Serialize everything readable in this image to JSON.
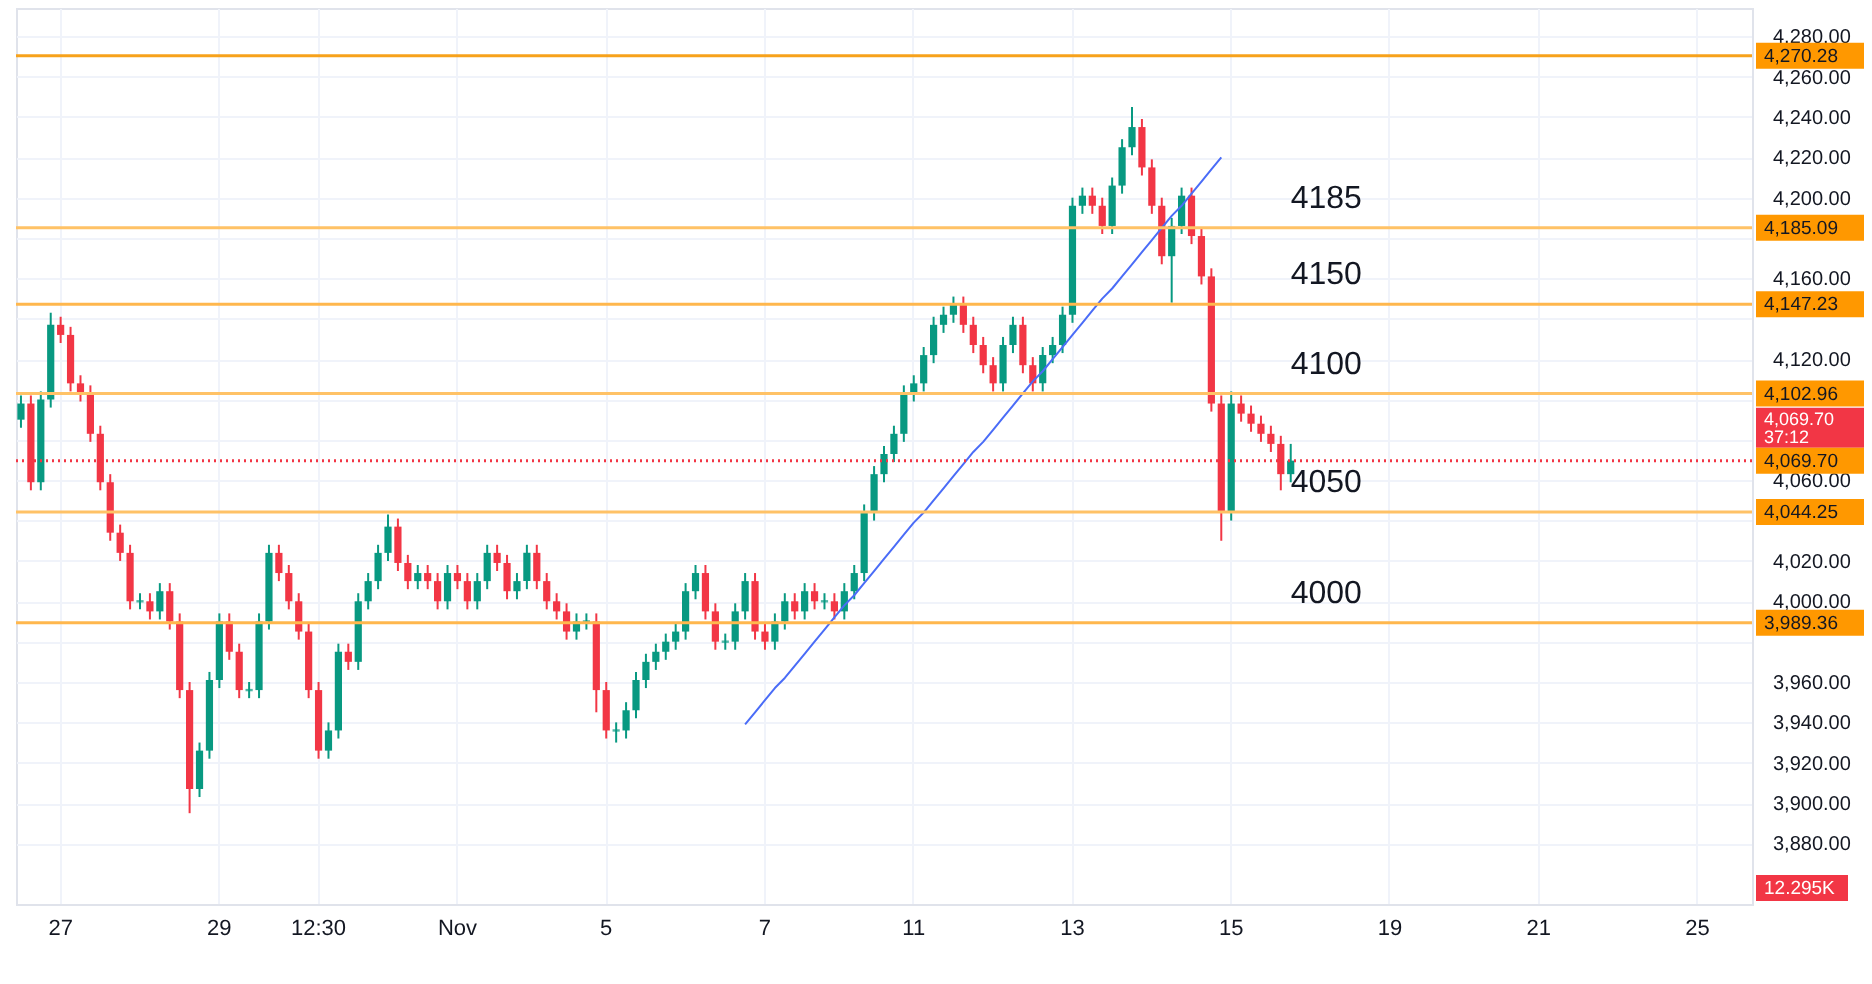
{
  "chart_data": {
    "type": "candlestick",
    "categories": [
      null,
      null,
      null,
      null,
      "27",
      null,
      null,
      null,
      null,
      null,
      null,
      null,
      null,
      null,
      null,
      null,
      null,
      null,
      null,
      null,
      "29",
      null,
      null,
      null,
      null,
      null,
      null,
      null,
      null,
      null,
      "12:30",
      null,
      null,
      null,
      null,
      null,
      null,
      null,
      null,
      null,
      null,
      null,
      null,
      null,
      "Nov",
      null,
      null,
      null,
      null,
      null,
      null,
      null,
      null,
      null,
      null,
      null,
      null,
      null,
      null,
      "5",
      null,
      null,
      null,
      null,
      null,
      null,
      null,
      null,
      null,
      null,
      null,
      null,
      null,
      null,
      null,
      "7",
      null,
      null,
      null,
      null,
      null,
      null,
      null,
      null,
      null,
      null,
      null,
      null,
      null,
      null,
      "11",
      null,
      null,
      null,
      null,
      null,
      null,
      null,
      null,
      null,
      null,
      null,
      null,
      null,
      null,
      null,
      "13",
      null,
      null,
      null,
      null,
      null,
      null,
      null,
      null,
      null,
      null,
      null,
      null,
      null,
      null,
      null,
      "15",
      null,
      null,
      null,
      null,
      null,
      null,
      null,
      null,
      null,
      null,
      null,
      null,
      null,
      null,
      null,
      "19",
      null,
      null,
      null,
      null,
      null,
      null,
      null,
      null,
      null,
      null,
      null,
      null,
      null,
      null,
      "21",
      null,
      null,
      null,
      null,
      null,
      null,
      null,
      null,
      null,
      null,
      null,
      null,
      null,
      null,
      null,
      "25",
      null,
      null,
      null,
      null,
      null
    ],
    "ohlc": [
      [
        4090,
        4102,
        4086,
        4098
      ],
      [
        4098,
        4102,
        4055,
        4059
      ],
      [
        4059,
        4104,
        4055,
        4100
      ],
      [
        4100,
        4143,
        4096,
        4137
      ],
      [
        4137,
        4141,
        4128,
        4132
      ],
      [
        4132,
        4136,
        4104,
        4108
      ],
      [
        4108,
        4112,
        4099,
        4103
      ],
      [
        4103,
        4107,
        4079,
        4083
      ],
      [
        4083,
        4087,
        4055,
        4059
      ],
      [
        4059,
        4063,
        4030,
        4034
      ],
      [
        4034,
        4038,
        4020,
        4024
      ],
      [
        4024,
        4028,
        3996,
        4000
      ],
      [
        4000,
        4004,
        3996,
        4000
      ],
      [
        4000,
        4004,
        3991,
        3995
      ],
      [
        3995,
        4009,
        3991,
        4005
      ],
      [
        4005,
        4009,
        3986,
        3990
      ],
      [
        3990,
        3994,
        3952,
        3956
      ],
      [
        3956,
        3960,
        3895,
        3907
      ],
      [
        3907,
        3930,
        3903,
        3926
      ],
      [
        3926,
        3965,
        3922,
        3961
      ],
      [
        3961,
        3994,
        3957,
        3990
      ],
      [
        3990,
        3994,
        3971,
        3975
      ],
      [
        3975,
        3979,
        3952,
        3956
      ],
      [
        3956,
        3960,
        3952,
        3956
      ],
      [
        3956,
        3994,
        3952,
        3990
      ],
      [
        3990,
        4028,
        3986,
        4024
      ],
      [
        4024,
        4028,
        4010,
        4014
      ],
      [
        4014,
        4018,
        3996,
        4000
      ],
      [
        4000,
        4004,
        3981,
        3985
      ],
      [
        3985,
        3989,
        3952,
        3956
      ],
      [
        3956,
        3960,
        3922,
        3926
      ],
      [
        3926,
        3940,
        3922,
        3936
      ],
      [
        3936,
        3979,
        3932,
        3975
      ],
      [
        3975,
        3979,
        3966,
        3970
      ],
      [
        3970,
        4004,
        3966,
        4000
      ],
      [
        4000,
        4014,
        3996,
        4010
      ],
      [
        4010,
        4028,
        4006,
        4024
      ],
      [
        4024,
        4043,
        4020,
        4037
      ],
      [
        4037,
        4041,
        4015,
        4019
      ],
      [
        4019,
        4023,
        4006,
        4010
      ],
      [
        4010,
        4018,
        4006,
        4014
      ],
      [
        4014,
        4018,
        4006,
        4010
      ],
      [
        4010,
        4014,
        3996,
        4000
      ],
      [
        4000,
        4018,
        3996,
        4014
      ],
      [
        4014,
        4018,
        4006,
        4010
      ],
      [
        4010,
        4014,
        3996,
        4000
      ],
      [
        4000,
        4014,
        3996,
        4010
      ],
      [
        4010,
        4028,
        4006,
        4024
      ],
      [
        4024,
        4028,
        4015,
        4019
      ],
      [
        4019,
        4023,
        4001,
        4005
      ],
      [
        4005,
        4014,
        4001,
        4010
      ],
      [
        4010,
        4028,
        4006,
        4024
      ],
      [
        4024,
        4028,
        4006,
        4010
      ],
      [
        4010,
        4014,
        3996,
        4000
      ],
      [
        4000,
        4004,
        3991,
        3995
      ],
      [
        3995,
        3999,
        3981,
        3985
      ],
      [
        3985,
        3994,
        3981,
        3990
      ],
      [
        3990,
        3994,
        3986,
        3990
      ],
      [
        3990,
        3994,
        3945,
        3956
      ],
      [
        3956,
        3960,
        3932,
        3936
      ],
      [
        3936,
        3940,
        3930,
        3936
      ],
      [
        3936,
        3950,
        3932,
        3946
      ],
      [
        3946,
        3965,
        3942,
        3961
      ],
      [
        3961,
        3974,
        3957,
        3970
      ],
      [
        3970,
        3979,
        3966,
        3975
      ],
      [
        3975,
        3984,
        3971,
        3980
      ],
      [
        3980,
        3989,
        3976,
        3985
      ],
      [
        3985,
        4009,
        3981,
        4005
      ],
      [
        4005,
        4018,
        4001,
        4014
      ],
      [
        4014,
        4018,
        3991,
        3995
      ],
      [
        3995,
        3999,
        3976,
        3980
      ],
      [
        3980,
        3984,
        3976,
        3980
      ],
      [
        3980,
        3999,
        3976,
        3995
      ],
      [
        3995,
        4014,
        3991,
        4010
      ],
      [
        4010,
        4014,
        3981,
        3985
      ],
      [
        3985,
        3989,
        3976,
        3980
      ],
      [
        3980,
        3994,
        3976,
        3990
      ],
      [
        3990,
        4004,
        3986,
        4000
      ],
      [
        4000,
        4004,
        3991,
        3995
      ],
      [
        3995,
        4009,
        3991,
        4005
      ],
      [
        4005,
        4009,
        3996,
        4000
      ],
      [
        4000,
        4004,
        3996,
        4000
      ],
      [
        4000,
        4004,
        3991,
        3995
      ],
      [
        3995,
        4009,
        3991,
        4005
      ],
      [
        4005,
        4018,
        4001,
        4014
      ],
      [
        4014,
        4048,
        4010,
        4044
      ],
      [
        4044,
        4067,
        4040,
        4063
      ],
      [
        4063,
        4077,
        4059,
        4073
      ],
      [
        4073,
        4087,
        4069,
        4083
      ],
      [
        4083,
        4107,
        4079,
        4103
      ],
      [
        4103,
        4112,
        4099,
        4108
      ],
      [
        4108,
        4126,
        4104,
        4122
      ],
      [
        4122,
        4141,
        4118,
        4137
      ],
      [
        4137,
        4146,
        4133,
        4142
      ],
      [
        4142,
        4151,
        4138,
        4147
      ],
      [
        4147,
        4151,
        4133,
        4137
      ],
      [
        4137,
        4141,
        4123,
        4127
      ],
      [
        4127,
        4131,
        4113,
        4117
      ],
      [
        4117,
        4121,
        4104,
        4108
      ],
      [
        4108,
        4131,
        4104,
        4127
      ],
      [
        4127,
        4141,
        4123,
        4137
      ],
      [
        4137,
        4141,
        4113,
        4117
      ],
      [
        4117,
        4121,
        4104,
        4108
      ],
      [
        4108,
        4126,
        4104,
        4122
      ],
      [
        4122,
        4131,
        4118,
        4127
      ],
      [
        4127,
        4146,
        4123,
        4142
      ],
      [
        4142,
        4200,
        4138,
        4196
      ],
      [
        4196,
        4205,
        4192,
        4201
      ],
      [
        4201,
        4205,
        4192,
        4196
      ],
      [
        4196,
        4200,
        4182,
        4186
      ],
      [
        4186,
        4210,
        4182,
        4206
      ],
      [
        4206,
        4229,
        4202,
        4225
      ],
      [
        4225,
        4245,
        4221,
        4235
      ],
      [
        4235,
        4239,
        4211,
        4215
      ],
      [
        4215,
        4219,
        4192,
        4196
      ],
      [
        4196,
        4200,
        4167,
        4171
      ],
      [
        4171,
        4190,
        4148,
        4186
      ],
      [
        4186,
        4205,
        4182,
        4201
      ],
      [
        4201,
        4205,
        4177,
        4181
      ],
      [
        4181,
        4185,
        4157,
        4161
      ],
      [
        4161,
        4165,
        4094,
        4098
      ],
      [
        4098,
        4102,
        4030,
        4044
      ],
      [
        4044,
        4104,
        4040,
        4098
      ],
      [
        4098,
        4102,
        4089,
        4093
      ],
      [
        4093,
        4097,
        4084,
        4088
      ],
      [
        4088,
        4092,
        4079,
        4083
      ],
      [
        4083,
        4087,
        4074,
        4078
      ],
      [
        4078,
        4082,
        4055,
        4063
      ],
      [
        4063,
        4078,
        4059,
        4069.7
      ],
      null,
      null,
      null,
      null,
      null,
      null,
      null,
      null,
      null,
      null,
      null,
      null,
      null,
      null,
      null,
      null,
      null,
      null,
      null,
      null,
      null,
      null,
      null,
      null,
      null,
      null,
      null,
      null,
      null,
      null,
      null,
      null,
      null,
      null,
      null,
      null,
      null,
      null,
      null,
      null,
      null,
      null,
      null,
      null,
      null,
      null
    ],
    "series": [
      {
        "type": "line",
        "color": "#4a6cf7",
        "values": [
          null,
          null,
          null,
          null,
          null,
          null,
          null,
          null,
          null,
          null,
          null,
          null,
          null,
          null,
          null,
          null,
          null,
          null,
          null,
          null,
          null,
          null,
          null,
          null,
          null,
          null,
          null,
          null,
          null,
          null,
          null,
          null,
          null,
          null,
          null,
          null,
          null,
          null,
          null,
          null,
          null,
          null,
          null,
          null,
          null,
          null,
          null,
          null,
          null,
          null,
          null,
          null,
          null,
          null,
          null,
          null,
          null,
          null,
          null,
          null,
          null,
          null,
          null,
          null,
          null,
          null,
          null,
          null,
          null,
          null,
          null,
          null,
          null,
          3939,
          3945,
          3951,
          3957,
          3962,
          3968,
          3974,
          3980,
          3986,
          3992,
          3998,
          4003,
          4009,
          4015,
          4021,
          4027,
          4033,
          4039,
          4044,
          4050,
          4056,
          4062,
          4068,
          4074,
          4079,
          4085,
          4091,
          4097,
          4103,
          4109,
          4114,
          4120,
          4126,
          4132,
          4138,
          4144,
          4150,
          4155,
          4161,
          4167,
          4173,
          4179,
          4185,
          4191,
          4196,
          4202,
          4208,
          4214,
          4220,
          null,
          null,
          null,
          null,
          null,
          null,
          null,
          null,
          null,
          null,
          null,
          null,
          null,
          null,
          null,
          null,
          null,
          null,
          null,
          null,
          null,
          null,
          null,
          null,
          null,
          null,
          null,
          null,
          null,
          null,
          null,
          null,
          null,
          null,
          null,
          null,
          null,
          null,
          null,
          null,
          null,
          null,
          null,
          null,
          null,
          null,
          null,
          null,
          null,
          null,
          null,
          null,
          null
        ]
      }
    ],
    "ylim": [
      3850,
      4294
    ],
    "yticks": [
      {
        "value": 3880,
        "label": "3,880.00"
      },
      {
        "value": 3900,
        "label": "3,900.00"
      },
      {
        "value": 3920,
        "label": "3,920.00"
      },
      {
        "value": 3940,
        "label": "3,940.00"
      },
      {
        "value": 3960,
        "label": "3,960.00"
      },
      {
        "value": 3980,
        "label": null
      },
      {
        "value": 4000,
        "label": "4,000.00"
      },
      {
        "value": 4020,
        "label": "4,020.00"
      },
      {
        "value": 4040,
        "label": null
      },
      {
        "value": 4060,
        "label": "4,060.00"
      },
      {
        "value": 4080,
        "label": null
      },
      {
        "value": 4100,
        "label": null
      },
      {
        "value": 4120,
        "label": "4,120.00"
      },
      {
        "value": 4140,
        "label": null
      },
      {
        "value": 4160,
        "label": "4,160.00"
      },
      {
        "value": 4180,
        "label": null
      },
      {
        "value": 4200,
        "label": "4,200.00"
      },
      {
        "value": 4220,
        "label": "4,220.00"
      },
      {
        "value": 4240,
        "label": "4,240.00"
      },
      {
        "value": 4260,
        "label": "4,260.00"
      },
      {
        "value": 4280,
        "label": "4,280.00"
      }
    ],
    "grid": true,
    "ref_lines": [
      {
        "axis": "y",
        "value": 4270.28,
        "label": "4,270.28",
        "color": "#f7a21b"
      },
      {
        "axis": "y",
        "value": 4185.09,
        "label": "4,185.09",
        "color": "#ffc266"
      },
      {
        "axis": "y",
        "value": 4147.23,
        "label": "4,147.23",
        "color": "#ffb74d"
      },
      {
        "axis": "y",
        "value": 4102.96,
        "label": "4,102.96",
        "color": "#ffc266"
      },
      {
        "axis": "y",
        "value": 4069.7,
        "label": "4,069.70",
        "color": "#f23645",
        "line_style": "dotted"
      },
      {
        "axis": "y",
        "value": 4044.25,
        "label": "4,044.25",
        "color": "#ffc266"
      },
      {
        "axis": "y",
        "value": 3989.36,
        "label": "3,989.36",
        "color": "#ffb74d"
      }
    ],
    "annotations": [
      {
        "text": "4185",
        "y": 4185.09
      },
      {
        "text": "4150",
        "y": 4147.23
      },
      {
        "text": "4100",
        "y": 4102.96
      },
      {
        "text": "4050",
        "y": 4044.25
      },
      {
        "text": "4000",
        "y": 3989.36
      },
      "4,069.70",
      "37:12",
      "12.295K"
    ]
  }
}
